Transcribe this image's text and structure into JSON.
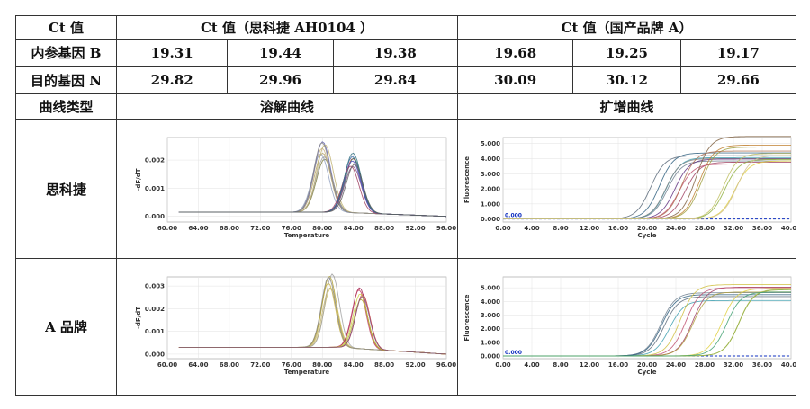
{
  "table": {
    "header": {
      "col1": "Ct 值",
      "group1": "Ct 值（思科捷 AH0104 ）",
      "group2": "Ct 值（国产品牌 A）"
    },
    "rows": [
      {
        "label": "内参基因 B",
        "values": [
          "19.31",
          "19.44",
          "19.38",
          "19.68",
          "19.25",
          "19.17"
        ]
      },
      {
        "label": "目的基因 N",
        "values": [
          "29.82",
          "29.96",
          "29.84",
          "30.09",
          "30.12",
          "29.66"
        ]
      }
    ],
    "curve_header": {
      "label": "曲线类型",
      "melt": "溶解曲线",
      "amp": "扩增曲线"
    },
    "plot_rows": [
      {
        "label": "思科捷"
      },
      {
        "label": "A 品牌"
      }
    ]
  },
  "chart_data": [
    {
      "id": "melt-sikejie",
      "type": "line",
      "title": "",
      "xlabel": "Temperature",
      "ylabel": "-dF/dT",
      "xlim": [
        60,
        96
      ],
      "ylim": [
        -0.0002,
        0.0028
      ],
      "xticks": [
        "60.00",
        "64.00",
        "68.00",
        "72.00",
        "76.00",
        "80.00",
        "84.00",
        "88.00",
        "92.00",
        "96.00"
      ],
      "yticks": [
        "0.000",
        "0.001",
        "0.002"
      ],
      "ytick_values": [
        0,
        0.001,
        0.002
      ],
      "peaks": [
        {
          "center": 80.0,
          "height": 0.00225,
          "width": 1.5,
          "colors": [
            "#7a7a40",
            "#b0a060",
            "#c8b080",
            "#90a0c0",
            "#6060b0",
            "#a0a0a0",
            "#c0b070",
            "#8a8a8a"
          ]
        },
        {
          "center": 84.0,
          "height": 0.0019,
          "width": 1.5,
          "colors": [
            "#c03030",
            "#3060a0",
            "#408070",
            "#805080",
            "#5050c0",
            "#a04060",
            "#307080",
            "#606060"
          ]
        }
      ],
      "baseline": 0.00015,
      "grid": true
    },
    {
      "id": "amp-sikejie",
      "type": "line",
      "title": "",
      "xlabel": "Cycle",
      "ylabel": "Fluorescence",
      "xlim": [
        0,
        40
      ],
      "ylim": [
        -0.2,
        5.4
      ],
      "xticks": [
        "0.00",
        "4.00",
        "8.00",
        "12.00",
        "16.00",
        "20.00",
        "24.00",
        "28.00",
        "32.00",
        "36.00",
        "40.00"
      ],
      "yticks": [
        "0.000",
        "1.000",
        "2.000",
        "3.000",
        "4.000",
        "5.000"
      ],
      "ytick_values": [
        0,
        1,
        2,
        3,
        4,
        5
      ],
      "threshold_label": "0.000",
      "groups": [
        {
          "ct": 21.5,
          "plateau": 4.2,
          "colors": [
            "#708090",
            "#5a6a7a",
            "#40a0b0",
            "#306080"
          ]
        },
        {
          "ct": 24.0,
          "plateau": 4.0,
          "colors": [
            "#a04060",
            "#c05070",
            "#808080",
            "#603080"
          ]
        },
        {
          "ct": 26.0,
          "plateau": 5.0,
          "colors": [
            "#c08030",
            "#a0a040",
            "#806040",
            "#b07050"
          ]
        },
        {
          "ct": 31.5,
          "plateau": 4.0,
          "colors": [
            "#e0d040",
            "#c0c060",
            "#90b040",
            "#d0c090"
          ]
        }
      ],
      "grid": true
    },
    {
      "id": "melt-abrand",
      "type": "line",
      "title": "",
      "xlabel": "Temperature",
      "ylabel": "-dF/dT",
      "xlim": [
        60,
        96
      ],
      "ylim": [
        -0.0002,
        0.0034
      ],
      "xticks": [
        "60.00",
        "64.00",
        "68.00",
        "72.00",
        "76.00",
        "80.00",
        "84.00",
        "88.00",
        "92.00",
        "96.00"
      ],
      "yticks": [
        "0.000",
        "0.001",
        "0.002",
        "0.003"
      ],
      "ytick_values": [
        0,
        0.001,
        0.002,
        0.003
      ],
      "peaks": [
        {
          "center": 81.0,
          "height": 0.0029,
          "width": 1.3,
          "colors": [
            "#c8b040",
            "#b0a030",
            "#d0c060",
            "#a0a0a0",
            "#c0b070",
            "#8a8a8a"
          ]
        },
        {
          "center": 85.0,
          "height": 0.0024,
          "width": 1.3,
          "colors": [
            "#c03030",
            "#a02050",
            "#c04060",
            "#d0d040",
            "#b0b030",
            "#805080"
          ]
        }
      ],
      "baseline": 0.0003,
      "grid": true
    },
    {
      "id": "amp-abrand",
      "type": "line",
      "title": "",
      "xlabel": "Cycle",
      "ylabel": "Fluorescence",
      "xlim": [
        0,
        40
      ],
      "ylim": [
        -0.2,
        5.8
      ],
      "xticks": [
        "0.00",
        "4.00",
        "8.00",
        "12.00",
        "16.00",
        "20.00",
        "24.00",
        "28.00",
        "32.00",
        "36.00",
        "40.00"
      ],
      "yticks": [
        "0.000",
        "1.000",
        "2.000",
        "3.000",
        "4.000",
        "5.000"
      ],
      "ytick_values": [
        0,
        1,
        2,
        3,
        4,
        5
      ],
      "threshold_label": "0.000",
      "groups": [
        {
          "ct": 22.5,
          "plateau": 4.3,
          "colors": [
            "#708090",
            "#5a6a7a",
            "#40a0b0",
            "#306080"
          ]
        },
        {
          "ct": 25.0,
          "plateau": 5.1,
          "colors": [
            "#a04060",
            "#c05070",
            "#d0c040",
            "#b0a040"
          ]
        },
        {
          "ct": 31.5,
          "plateau": 4.6,
          "colors": [
            "#e0d040",
            "#c0c060",
            "#90b040",
            "#40a070"
          ]
        }
      ],
      "grid": true
    }
  ]
}
